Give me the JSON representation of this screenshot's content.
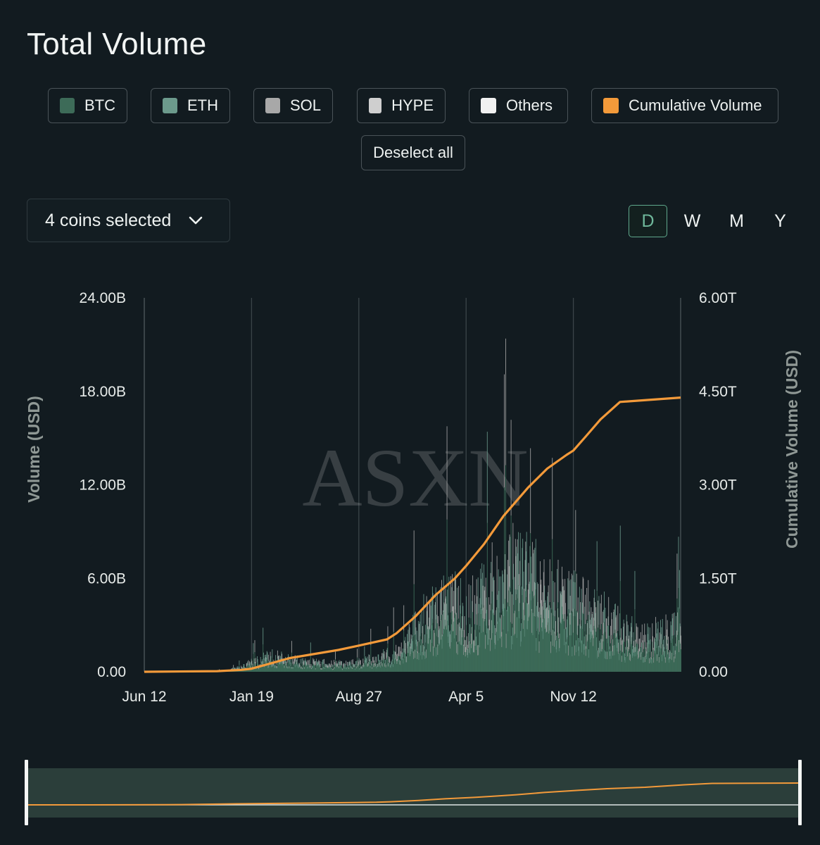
{
  "title": "Total Volume",
  "legend": [
    {
      "label": "BTC",
      "color": "#3d6b58"
    },
    {
      "label": "ETH",
      "color": "#6c9a8c"
    },
    {
      "label": "SOL",
      "color": "#a8a8a8"
    },
    {
      "label": "HYPE",
      "color": "#cfcfcf"
    },
    {
      "label": "Others",
      "color": "#f1f1f1"
    },
    {
      "label": "Cumulative Volume",
      "color": "#f39a3a"
    }
  ],
  "deselect_label": "Deselect all",
  "coin_select_label": "4 coins selected",
  "periods": [
    {
      "label": "D",
      "active": true
    },
    {
      "label": "W",
      "active": false
    },
    {
      "label": "M",
      "active": false
    },
    {
      "label": "Y",
      "active": false
    }
  ],
  "chart_data": {
    "type": "bar",
    "watermark": "ASXN",
    "ylabel": "Volume (USD)",
    "y2label": "Cumulative Volume (USD)",
    "ylim": [
      0,
      24000000000
    ],
    "y2lim": [
      0,
      6000000000000
    ],
    "y_ticks": [
      "0.00",
      "6.00B",
      "12.00B",
      "18.00B",
      "24.00B"
    ],
    "y2_ticks": [
      "0.00",
      "1.50T",
      "3.00T",
      "4.50T",
      "6.00T"
    ],
    "x_ticks": [
      "Jun 12",
      "Jan 19",
      "Aug 27",
      "Apr 5",
      "Nov 12"
    ],
    "x_tick_day_offsets": [
      0,
      221,
      442,
      663,
      884
    ],
    "x_day_range": [
      0,
      1105
    ],
    "series": [
      {
        "name": "BTC",
        "color": "#3d6b58"
      },
      {
        "name": "ETH",
        "color": "#6c9a8c"
      },
      {
        "name": "SOL",
        "color": "#a8a8a8"
      },
      {
        "name": "HYPE",
        "color": "#cfcfcf"
      },
      {
        "name": "Others",
        "color": "#f1f1f1"
      }
    ],
    "daily_volume_profile_B": [
      [
        0,
        0.0
      ],
      [
        160,
        0.05
      ],
      [
        200,
        0.3
      ],
      [
        221,
        0.6
      ],
      [
        260,
        1.0
      ],
      [
        300,
        0.8
      ],
      [
        340,
        0.6
      ],
      [
        400,
        0.5
      ],
      [
        442,
        0.6
      ],
      [
        480,
        0.9
      ],
      [
        530,
        1.3
      ],
      [
        560,
        3.0
      ],
      [
        600,
        4.0
      ],
      [
        640,
        4.5
      ],
      [
        663,
        3.8
      ],
      [
        700,
        5.0
      ],
      [
        740,
        6.5
      ],
      [
        790,
        6.2
      ],
      [
        830,
        5.0
      ],
      [
        884,
        4.5
      ],
      [
        930,
        3.8
      ],
      [
        980,
        2.8
      ],
      [
        1030,
        2.2
      ],
      [
        1060,
        2.5
      ],
      [
        1105,
        2.8
      ]
    ],
    "cumulative_T": [
      [
        0,
        0.0
      ],
      [
        150,
        0.01
      ],
      [
        200,
        0.03
      ],
      [
        221,
        0.05
      ],
      [
        300,
        0.22
      ],
      [
        400,
        0.35
      ],
      [
        442,
        0.42
      ],
      [
        500,
        0.52
      ],
      [
        520,
        0.62
      ],
      [
        560,
        0.9
      ],
      [
        600,
        1.23
      ],
      [
        640,
        1.5
      ],
      [
        663,
        1.7
      ],
      [
        700,
        2.05
      ],
      [
        740,
        2.5
      ],
      [
        790,
        2.95
      ],
      [
        830,
        3.26
      ],
      [
        870,
        3.48
      ],
      [
        884,
        3.55
      ],
      [
        910,
        3.78
      ],
      [
        940,
        4.05
      ],
      [
        980,
        4.33
      ],
      [
        1105,
        4.4
      ]
    ]
  }
}
